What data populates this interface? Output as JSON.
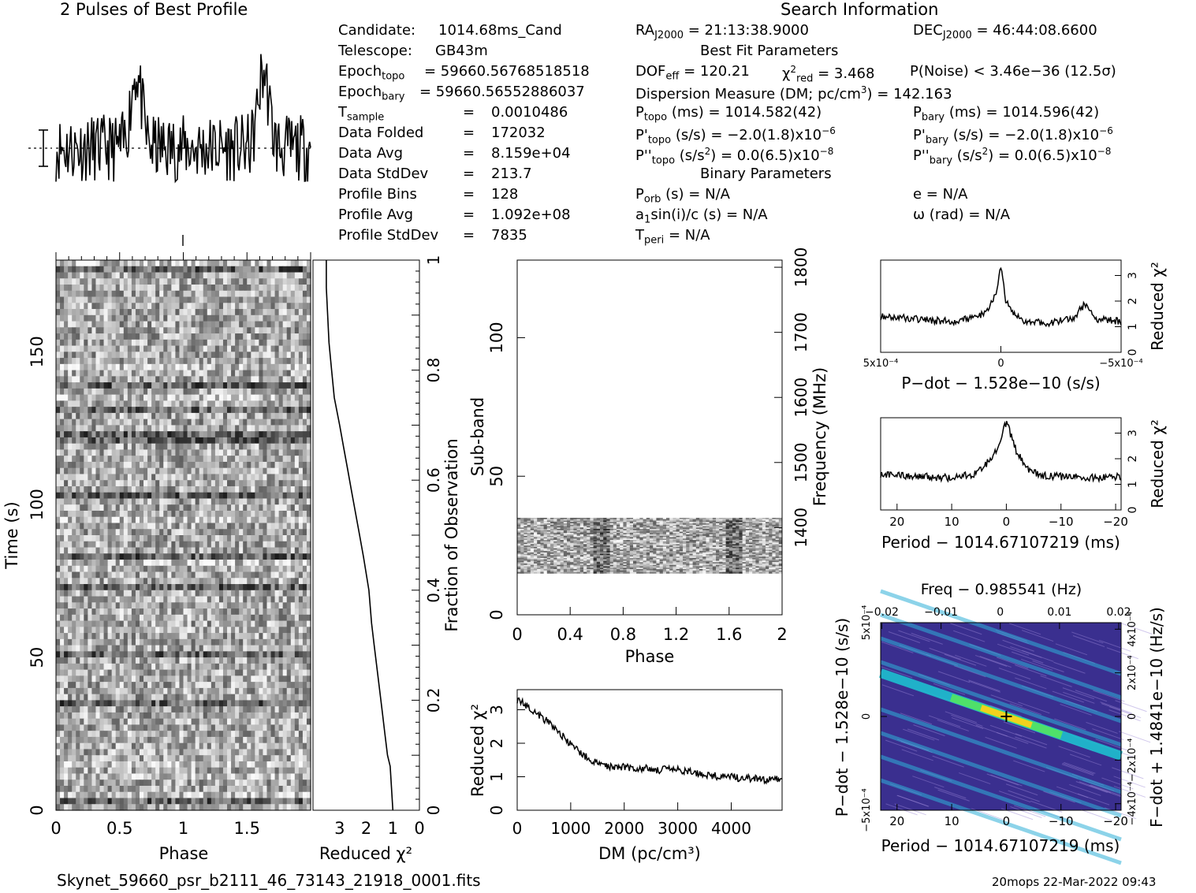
{
  "left_title": "2 Pulses of Best Profile",
  "right_title": "Search Information",
  "filename": "Skynet_59660_psr_b2111_46_73143_21918_0001.fits",
  "timestamp": "20mops 22-Mar-2022 09:43",
  "info": {
    "candidate_label": "Candidate:",
    "candidate": "1014.68ms_Cand",
    "telescope_label": "Telescope:",
    "telescope": "GB43m",
    "epoch_topo_label": "Epoch",
    "epoch_topo_sub": "topo",
    "epoch_topo": "= 59660.56768518518",
    "epoch_bary_label": "Epoch",
    "epoch_bary_sub": "bary",
    "epoch_bary": "= 59660.56552886037",
    "tsample_label": "T",
    "tsample_sub": "sample",
    "tsample": "0.0010486",
    "data_folded_label": "Data Folded",
    "data_folded": "172032",
    "data_avg_label": "Data Avg",
    "data_avg": "8.159e+04",
    "data_stddev_label": "Data StdDev",
    "data_stddev": "213.7",
    "profile_bins_label": "Profile Bins",
    "profile_bins": "128",
    "profile_avg_label": "Profile Avg",
    "profile_avg": "1.092e+08",
    "profile_stddev_label": "Profile StdDev",
    "profile_stddev": "7835",
    "eq": "="
  },
  "search": {
    "ra": "= 21:13:38.9000",
    "dec": "= 46:44:08.6600",
    "best_fit": "Best Fit Parameters",
    "dof": "= 120.21",
    "chi2red": "= 3.468",
    "pnoise": "P(Noise) < 3.46e−36   (12.5σ)",
    "dm": "Dispersion Measure (DM; pc/cm",
    "dm_val": ") = 142.163",
    "ptopo": "(ms)  =   1014.582(42)",
    "pbary": "(ms)  =   1014.596(42)",
    "pdtopo": "(s/s) = −2.0(1.8)x10",
    "pdbary": "(s/s) = −2.0(1.8)x10",
    "pddtopo": "(s/s",
    "pddtopo2": ") = 0.0(6.5)x10",
    "pddbary": "(s/s",
    "pddbary2": ") = 0.0(6.5)x10",
    "exp6": "−6",
    "exp8": "−8",
    "binary": "Binary Parameters",
    "porb": "(s) = N/A",
    "asini": "sin(i)/c (s) = N/A",
    "tperi": "= N/A",
    "e": "e = N/A",
    "omega": "ω (rad) = N/A"
  },
  "chart_data": [
    {
      "type": "line",
      "name": "profile",
      "title": "2 Pulses of Best Profile",
      "xlim": [
        0,
        2
      ],
      "peak_phases": [
        0.63,
        1.63
      ],
      "errorbar": "yes"
    },
    {
      "type": "heatmap",
      "name": "time-phase",
      "xlabel": "Phase",
      "ylabel": "Time (s)",
      "xlim": [
        0,
        2
      ],
      "ylim": [
        0,
        180
      ],
      "xticks": [
        "0",
        "0.5",
        "1",
        "1.5"
      ],
      "yticks": [
        "0",
        "50",
        "100",
        "150"
      ]
    },
    {
      "type": "line",
      "name": "reduced-chi2-vs-time",
      "xlabel": "Reduced χ²",
      "ylabel": "Fraction of Observation",
      "xlim": [
        4,
        0
      ],
      "ylim": [
        0,
        1
      ],
      "xticks": [
        "3",
        "2",
        "1",
        "0"
      ],
      "yticks": [
        "0",
        "0.2",
        "0.4",
        "0.6",
        "0.8",
        "1"
      ],
      "x": [
        1.0,
        1.05,
        1.1,
        1.2,
        1.3,
        1.4,
        1.5,
        1.6,
        1.7,
        1.8,
        1.85,
        1.9,
        2.0,
        2.1,
        2.25,
        2.4,
        2.55,
        2.7,
        2.85,
        3.0,
        3.2,
        3.3,
        3.4,
        3.45,
        3.5,
        3.5
      ],
      "y": [
        0.0,
        0.04,
        0.08,
        0.1,
        0.14,
        0.18,
        0.22,
        0.26,
        0.3,
        0.34,
        0.37,
        0.4,
        0.43,
        0.46,
        0.5,
        0.54,
        0.58,
        0.62,
        0.66,
        0.7,
        0.75,
        0.8,
        0.85,
        0.9,
        0.95,
        1.0
      ]
    },
    {
      "type": "heatmap",
      "name": "subband-phase",
      "xlabel": "Phase",
      "ylabel": "Sub-band",
      "y2label": "Frequency (MHz)",
      "xlim": [
        0,
        2
      ],
      "ylim": [
        0,
        128
      ],
      "y2lim": [
        1266,
        1811
      ],
      "xticks": [
        "0",
        "0.4",
        "0.8",
        "1.2",
        "1.6",
        "2"
      ],
      "yticks": [
        "0",
        "50",
        "100"
      ],
      "y2ticks": [
        "1400",
        "1500",
        "1600",
        "1700",
        "1800"
      ],
      "data_band": [
        15,
        35
      ]
    },
    {
      "type": "line",
      "name": "dm-curve",
      "xlabel": "DM (pc/cm³)",
      "ylabel": "Reduced χ²",
      "xlim": [
        0,
        4950
      ],
      "ylim": [
        0,
        3.6
      ],
      "xticks": [
        "0",
        "1000",
        "2000",
        "3000",
        "4000"
      ],
      "yticks": [
        "0",
        "1",
        "2",
        "3"
      ],
      "x": [
        0,
        200,
        400,
        600,
        800,
        1000,
        1200,
        1400,
        1600,
        1800,
        2000,
        2200,
        2400,
        2600,
        2800,
        3000,
        3200,
        3400,
        3600,
        3800,
        4000,
        4200,
        4400,
        4600,
        4800,
        4950
      ],
      "y": [
        3.3,
        3.1,
        2.85,
        2.6,
        2.3,
        1.95,
        1.7,
        1.45,
        1.35,
        1.3,
        1.3,
        1.25,
        1.25,
        1.2,
        1.22,
        1.2,
        1.15,
        1.1,
        1.05,
        1.0,
        1.0,
        0.95,
        0.95,
        0.9,
        0.95,
        0.9
      ]
    },
    {
      "type": "line",
      "name": "pdot-curve",
      "xlabel": "P−dot − 1.528e−10 (s/s)",
      "ylabel": "Reduced χ²",
      "xlim": [
        0.0005,
        -0.0005
      ],
      "ylim": [
        0,
        3.6
      ],
      "xticks": [
        "5x10⁻⁴",
        "0",
        "−5x10⁻⁴"
      ],
      "yticks": [
        "0",
        "1",
        "2",
        "3"
      ],
      "x": [
        0.0005,
        0.0004,
        0.0003,
        0.0002,
        0.0001,
        5e-05,
        2e-05,
        0.0,
        -2e-05,
        -5e-05,
        -0.0001,
        -0.0002,
        -0.0003,
        -0.00035,
        -0.0004,
        -0.0005
      ],
      "y": [
        1.4,
        1.35,
        1.25,
        1.2,
        1.35,
        1.7,
        2.4,
        3.3,
        2.0,
        1.5,
        1.2,
        1.15,
        1.3,
        1.9,
        1.3,
        1.2
      ]
    },
    {
      "type": "line",
      "name": "period-curve",
      "xlabel": "Period − 1014.67107219 (ms)",
      "ylabel": "Reduced χ²",
      "xlim": [
        23,
        -21
      ],
      "ylim": [
        0,
        3.6
      ],
      "xticks": [
        "20",
        "10",
        "0",
        "−10",
        "−20"
      ],
      "yticks": [
        "0",
        "1",
        "2",
        "3"
      ],
      "x": [
        23,
        20,
        15,
        10,
        6,
        4,
        2,
        1,
        0,
        -1,
        -2,
        -4,
        -6,
        -10,
        -15,
        -21
      ],
      "y": [
        1.4,
        1.35,
        1.3,
        1.25,
        1.4,
        1.7,
        2.3,
        2.8,
        3.45,
        2.8,
        2.2,
        1.6,
        1.35,
        1.3,
        1.25,
        1.3
      ]
    },
    {
      "type": "heatmap",
      "name": "period-pdot-plane",
      "title": "Freq − 0.985541 (Hz)",
      "xlabel": "Period − 1014.67107219 (ms)",
      "ylabel": "P−dot − 1.528e−10 (s/s)",
      "y2label": "F−dot + 1.4841e−10 (Hz/s)",
      "xlim": [
        23,
        -21
      ],
      "ylim": [
        0.0005,
        -0.0005
      ],
      "xticks": [
        "20",
        "10",
        "0",
        "−10",
        "−20"
      ],
      "x2ticks": [
        "−0.02",
        "−0.01",
        "0",
        "0.01",
        "0.02"
      ],
      "yticks": [
        "5x10⁻⁴",
        "0",
        "−5x10⁻⁴"
      ],
      "y2ticks": [
        "−4x10⁻⁴",
        "−2x10⁻⁴",
        "0",
        "2x10⁻⁴",
        "4x10⁻⁴"
      ],
      "best": [
        0,
        0
      ]
    }
  ],
  "colors": {
    "ink": "#000000",
    "heat_bg": "#3a2f8f",
    "heat_mid": "#2fb0d8",
    "heat_hi": "#f2d21e"
  }
}
